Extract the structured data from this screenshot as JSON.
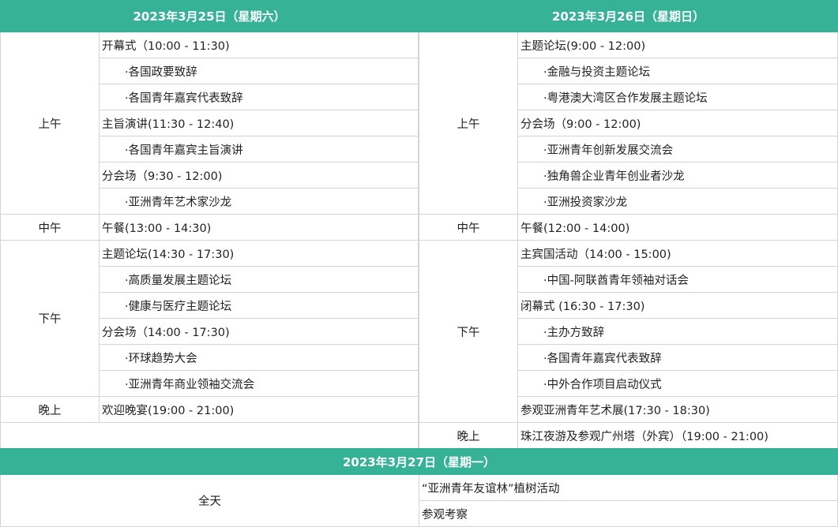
{
  "colors": {
    "header_bg": "#36b297",
    "header_text": "#ffffff",
    "border": "#d4d4d4"
  },
  "day1": {
    "title": "2023年3月25日（星期六）",
    "periods": [
      {
        "label": "上午",
        "items": [
          {
            "text": "开幕式（10:00 - 11:30)",
            "sub": false
          },
          {
            "text": "·各国政要致辞",
            "sub": true
          },
          {
            "text": "·各国青年嘉宾代表致辞",
            "sub": true
          },
          {
            "text": "主旨演讲(11:30 - 12:40)",
            "sub": false
          },
          {
            "text": "·各国青年嘉宾主旨演讲",
            "sub": true
          },
          {
            "text": "分会场（9:30 - 12:00)",
            "sub": false
          },
          {
            "text": "·亚洲青年艺术家沙龙",
            "sub": true
          }
        ]
      },
      {
        "label": "中午",
        "items": [
          {
            "text": "午餐(13:00 - 14:30)",
            "sub": false
          }
        ]
      },
      {
        "label": "下午",
        "items": [
          {
            "text": "主题论坛(14:30 - 17:30)",
            "sub": false
          },
          {
            "text": "·高质量发展主题论坛",
            "sub": true
          },
          {
            "text": "·健康与医疗主题论坛",
            "sub": true
          },
          {
            "text": "分会场（14:00 - 17:30)",
            "sub": false
          },
          {
            "text": "·环球趋势大会",
            "sub": true
          },
          {
            "text": "·亚洲青年商业领袖交流会",
            "sub": true
          }
        ]
      },
      {
        "label": "晚上",
        "items": [
          {
            "text": "欢迎晚宴(19:00 - 21:00)",
            "sub": false
          }
        ]
      },
      {
        "label": "",
        "blank": true,
        "items": []
      }
    ]
  },
  "day2": {
    "title": "2023年3月26日（星期日）",
    "periods": [
      {
        "label": "上午",
        "items": [
          {
            "text": "主题论坛(9:00 - 12:00)",
            "sub": false
          },
          {
            "text": "·金融与投资主题论坛",
            "sub": true
          },
          {
            "text": "·粤港澳大湾区合作发展主题论坛",
            "sub": true
          },
          {
            "text": "分会场（9:00 - 12:00)",
            "sub": false
          },
          {
            "text": "·亚洲青年创新发展交流会",
            "sub": true
          },
          {
            "text": "·独角兽企业青年创业者沙龙",
            "sub": true
          },
          {
            "text": "·亚洲投资家沙龙",
            "sub": true
          }
        ]
      },
      {
        "label": "中午",
        "items": [
          {
            "text": "午餐(12:00 - 14:00)",
            "sub": false
          }
        ]
      },
      {
        "label": "下午",
        "items": [
          {
            "text": "主宾国活动（14:00 - 15:00)",
            "sub": false
          },
          {
            "text": "·中国-阿联酋青年领袖对话会",
            "sub": true
          },
          {
            "text": "闭幕式 (16:30 - 17:30)",
            "sub": false
          },
          {
            "text": "·主办方致辞",
            "sub": true
          },
          {
            "text": "·各国青年嘉宾代表致辞",
            "sub": true
          },
          {
            "text": "·中外合作项目启动仪式",
            "sub": true
          },
          {
            "text": "参观亚洲青年艺术展(17:30 - 18:30)",
            "sub": false
          }
        ]
      },
      {
        "label": "晚上",
        "items": [
          {
            "text": "珠江夜游及参观广州塔（外宾）（19:00 - 21:00)",
            "sub": false
          }
        ]
      }
    ]
  },
  "day3": {
    "title": "2023年3月27日（星期一）",
    "period": "全天",
    "items": [
      "“亚洲青年友谊林”植树活动",
      "参观考察"
    ]
  }
}
